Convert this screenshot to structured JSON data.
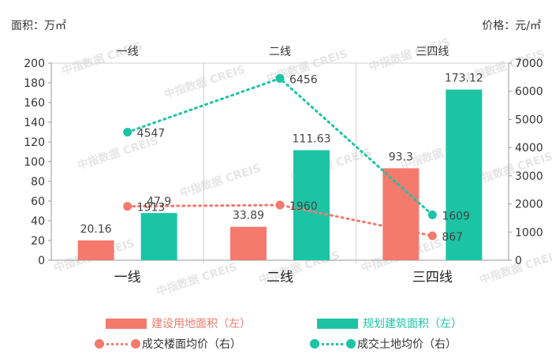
{
  "units": {
    "left": "面积：万㎡",
    "right": "价格：元/㎡"
  },
  "watermark": "中指数据 CREIS",
  "colors": {
    "red": "#F47A6E",
    "green": "#1CC4A6"
  },
  "chart_data": {
    "type": "bar",
    "categories": [
      "一线",
      "二线",
      "三四线"
    ],
    "top_labels": [
      "一线",
      "二线",
      "三四线"
    ],
    "y_left": {
      "lim": [
        0,
        200
      ],
      "ticks": [
        0,
        20,
        40,
        60,
        80,
        100,
        120,
        140,
        160,
        180,
        200
      ]
    },
    "y_right": {
      "lim": [
        0,
        7000
      ],
      "ticks": [
        0,
        1000,
        2000,
        3000,
        4000,
        5000,
        6000,
        7000
      ]
    },
    "bar_series": [
      {
        "name": "建设用地面积（左）",
        "values": [
          20.16,
          33.89,
          93.3
        ],
        "labels": [
          "20.16",
          "33.89",
          "93.3"
        ],
        "color": "#F47A6E"
      },
      {
        "name": "规划建筑面积（左）",
        "values": [
          47.9,
          111.63,
          173.12
        ],
        "labels": [
          "47.9",
          "111.63",
          "173.12"
        ],
        "color": "#1CC4A6"
      }
    ],
    "line_series": [
      {
        "name": "成交楼面均价（右）",
        "values": [
          1913,
          1960,
          867
        ],
        "labels": [
          "1913",
          "1960",
          "867"
        ],
        "color": "#F47A6E"
      },
      {
        "name": "成交土地均价（右）",
        "values": [
          4547,
          6456,
          1609
        ],
        "labels": [
          "4547",
          "6456",
          "1609"
        ],
        "color": "#1CC4A6"
      }
    ]
  }
}
